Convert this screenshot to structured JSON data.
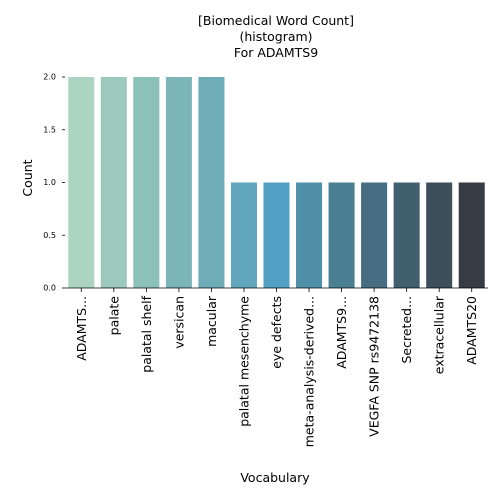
{
  "chart_data": {
    "type": "bar",
    "title_lines": [
      "[Biomedical Word Count]",
      "(histogram)",
      "For ADAMTS9"
    ],
    "xlabel": "Vocabulary",
    "ylabel": "Count",
    "categories": [
      "ADAMTS...",
      "palate",
      "palatal shelf",
      "versican",
      "macular",
      "palatal mesenchyme",
      "eye defects",
      "meta-analysis-derived...",
      "ADAMTS9...",
      "VEGFA SNP rs9472138",
      "Secreted...",
      "extracellular",
      "ADAMTS20"
    ],
    "values": [
      2,
      2,
      2,
      2,
      2,
      1,
      1,
      1,
      1,
      1,
      1,
      1,
      1
    ],
    "ylim": [
      0,
      2.0
    ],
    "yticks": [
      "0.0",
      "0.5",
      "1.0",
      "1.5",
      "2.0"
    ],
    "colors": [
      "#acd5c1",
      "#9dc9bc",
      "#8cc0ba",
      "#7bb5b8",
      "#6eacb7",
      "#62a6bd",
      "#52a0c3",
      "#4f8fa8",
      "#4a7f94",
      "#466d81",
      "#41606f",
      "#3d4f5a",
      "#373b43"
    ],
    "grid": false,
    "legend": "none"
  }
}
